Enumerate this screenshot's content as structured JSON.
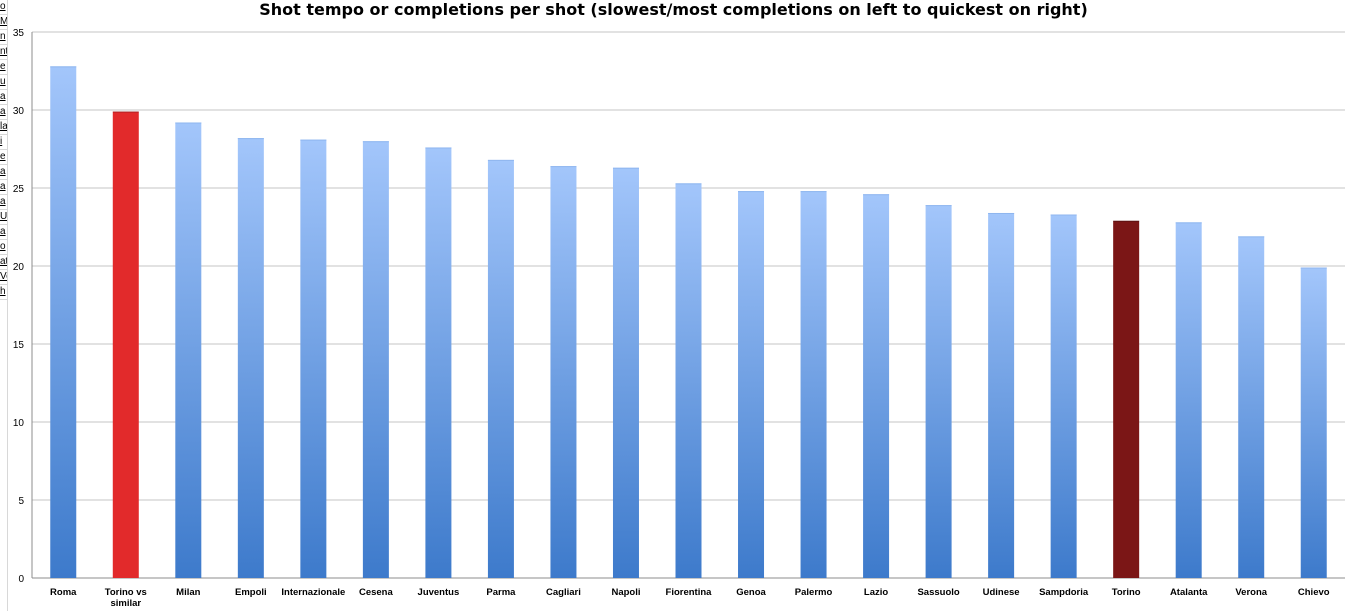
{
  "left_strip": {
    "cells": [
      "o",
      "M",
      "n",
      "nt",
      "e",
      "u",
      "a",
      "a",
      "la",
      "i",
      "e",
      "a",
      "a",
      "a",
      "U",
      "a",
      "o",
      "at",
      "Ve",
      "h"
    ]
  },
  "chart_data": {
    "type": "bar",
    "title": "Shot tempo or completions per shot (slowest/most completions on left to quickest on right)",
    "xlabel": "",
    "ylabel": "",
    "ylim": [
      0,
      35
    ],
    "yticks": [
      "0",
      "5",
      "10",
      "15",
      "20",
      "25",
      "30",
      "35"
    ],
    "grid": true,
    "legend": "none",
    "categories": [
      "Roma",
      "Torino vs similar",
      "Milan",
      "Empoli",
      "Internazionale",
      "Cesena",
      "Juventus",
      "Parma",
      "Cagliari",
      "Napoli",
      "Fiorentina",
      "Genoa",
      "Palermo",
      "Lazio",
      "Sassuolo",
      "Udinese",
      "Sampdoria",
      "Torino",
      "Atalanta",
      "Verona",
      "Chievo"
    ],
    "category_lines": [
      [
        "Roma"
      ],
      [
        "Torino vs",
        "similar"
      ],
      [
        "Milan"
      ],
      [
        "Empoli"
      ],
      [
        "Internazionale"
      ],
      [
        "Cesena"
      ],
      [
        "Juventus"
      ],
      [
        "Parma"
      ],
      [
        "Cagliari"
      ],
      [
        "Napoli"
      ],
      [
        "Fiorentina"
      ],
      [
        "Genoa"
      ],
      [
        "Palermo"
      ],
      [
        "Lazio"
      ],
      [
        "Sassuolo"
      ],
      [
        "Udinese"
      ],
      [
        "Sampdoria"
      ],
      [
        "Torino"
      ],
      [
        "Atalanta"
      ],
      [
        "Verona"
      ],
      [
        "Chievo"
      ]
    ],
    "values": [
      32.8,
      29.9,
      29.2,
      28.2,
      28.1,
      28.0,
      27.6,
      26.8,
      26.4,
      26.3,
      25.3,
      24.8,
      24.8,
      24.6,
      23.9,
      23.4,
      23.3,
      22.9,
      22.8,
      21.9,
      19.9
    ],
    "colors": {
      "default_top": "#a3c6fb",
      "default_bottom": "#3d7acb",
      "highlight_bright": "#e22a2b",
      "highlight_dark": "#7b1616",
      "grid": "#c4c4c4",
      "axis": "#8c8c8c"
    },
    "highlight_bright_index": 1,
    "highlight_dark_index": 17
  }
}
